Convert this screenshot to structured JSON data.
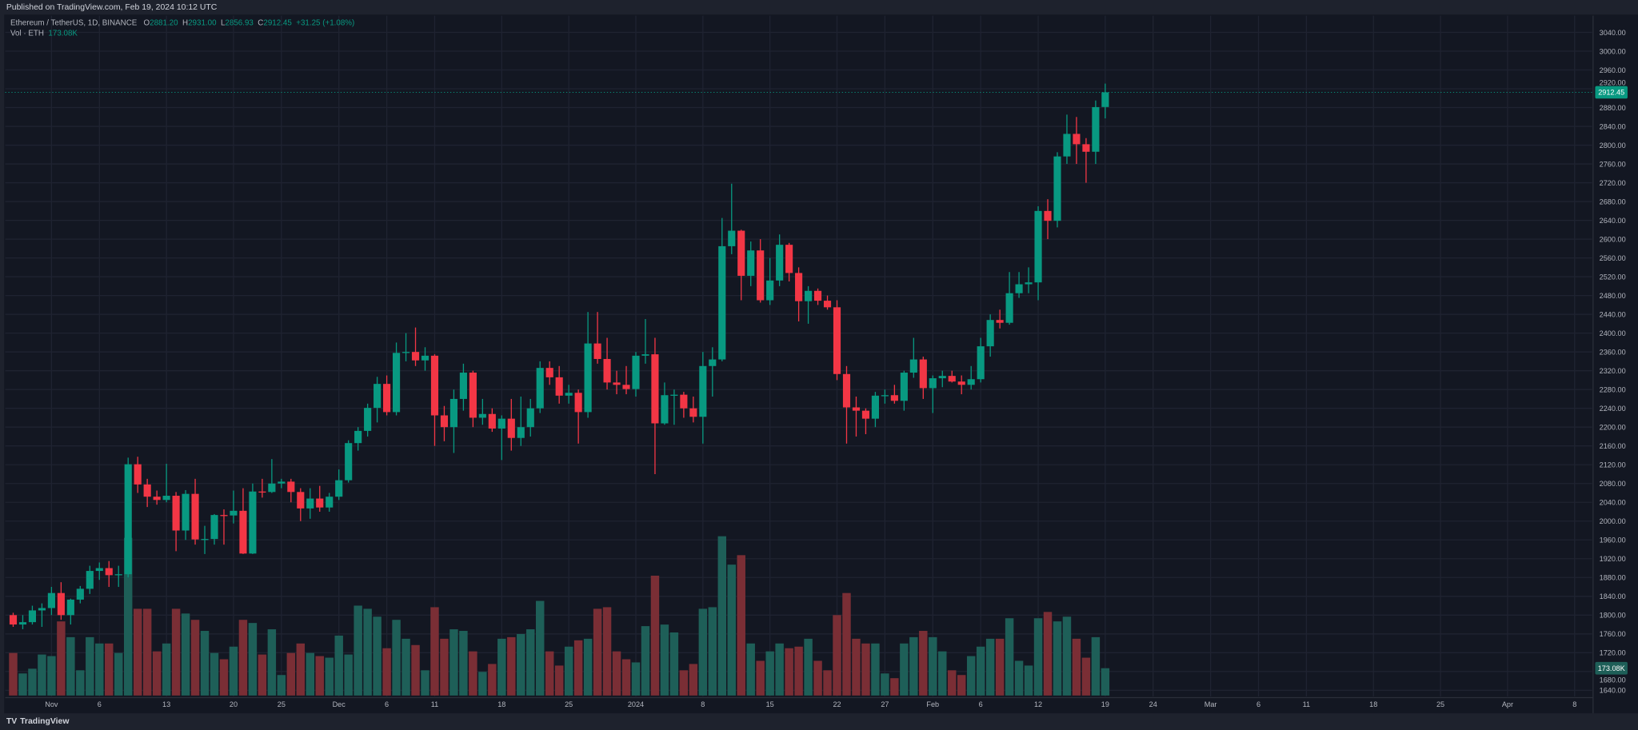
{
  "header": {
    "published": "Published on TradingView.com, Feb 19, 2024 10:12 UTC"
  },
  "legend": {
    "symbol": "Ethereum / TetherUS, 1D, BINANCE",
    "open_label": "O",
    "open": "2881.20",
    "high_label": "H",
    "high": "2931.00",
    "low_label": "L",
    "low": "2856.93",
    "close_label": "C",
    "close": "2912.45",
    "change": "+31.25 (+1.08%)",
    "volume_label": "Vol · ETH",
    "volume": "173.08K"
  },
  "footer": {
    "brand": "TradingView",
    "logo_text": "TV"
  },
  "colors": {
    "up": "#089981",
    "down": "#f23645",
    "vol_up": "#1e5f58",
    "vol_down": "#7a2e35",
    "background": "#131722",
    "grid": "#1f2331",
    "text": "#b2b5be"
  },
  "chart_data": {
    "type": "candlestick",
    "title": "Ethereum / TetherUS, 1D, BINANCE",
    "ylim": [
      1620,
      3060
    ],
    "grid": true,
    "last_price_label": "2912.45",
    "last_volume_label": "173.08K",
    "y_ticks": [
      "3040.00",
      "3000.00",
      "2960.00",
      "2920.00",
      "2880.00",
      "2840.00",
      "2800.00",
      "2760.00",
      "2720.00",
      "2680.00",
      "2640.00",
      "2600.00",
      "2560.00",
      "2520.00",
      "2480.00",
      "2440.00",
      "2400.00",
      "2360.00",
      "2320.00",
      "2280.00",
      "2240.00",
      "2200.00",
      "2160.00",
      "2120.00",
      "2080.00",
      "2040.00",
      "2000.00",
      "1960.00",
      "1920.00",
      "1880.00",
      "1840.00",
      "1800.00",
      "1760.00",
      "1720.00",
      "1680.00",
      "1640.00"
    ],
    "x_ticks": [
      {
        "label": "Nov",
        "date": "2023-11-01"
      },
      {
        "label": "6",
        "date": "2023-11-06"
      },
      {
        "label": "13",
        "date": "2023-11-13"
      },
      {
        "label": "20",
        "date": "2023-11-20"
      },
      {
        "label": "25",
        "date": "2023-11-25"
      },
      {
        "label": "Dec",
        "date": "2023-12-01"
      },
      {
        "label": "6",
        "date": "2023-12-06"
      },
      {
        "label": "11",
        "date": "2023-12-11"
      },
      {
        "label": "18",
        "date": "2023-12-18"
      },
      {
        "label": "25",
        "date": "2023-12-25"
      },
      {
        "label": "2024",
        "date": "2024-01-01"
      },
      {
        "label": "8",
        "date": "2024-01-08"
      },
      {
        "label": "15",
        "date": "2024-01-15"
      },
      {
        "label": "22",
        "date": "2024-01-22"
      },
      {
        "label": "27",
        "date": "2024-01-27"
      },
      {
        "label": "Feb",
        "date": "2024-02-01"
      },
      {
        "label": "6",
        "date": "2024-02-06"
      },
      {
        "label": "12",
        "date": "2024-02-12"
      },
      {
        "label": "19",
        "date": "2024-02-19"
      },
      {
        "label": "24",
        "date": "2024-02-24"
      },
      {
        "label": "Mar",
        "date": "2024-03-01"
      },
      {
        "label": "6",
        "date": "2024-03-06"
      },
      {
        "label": "11",
        "date": "2024-03-11"
      },
      {
        "label": "18",
        "date": "2024-03-18"
      },
      {
        "label": "25",
        "date": "2024-03-25"
      },
      {
        "label": "Apr",
        "date": "2024-04-01"
      },
      {
        "label": "8",
        "date": "2024-04-08"
      }
    ],
    "columns": [
      "date",
      "open",
      "high",
      "low",
      "close",
      "volume_k"
    ],
    "ohlcv": [
      [
        "2023-10-28",
        1800,
        1805,
        1775,
        1780,
        270
      ],
      [
        "2023-10-29",
        1780,
        1800,
        1770,
        1785,
        140
      ],
      [
        "2023-10-30",
        1785,
        1820,
        1780,
        1810,
        170
      ],
      [
        "2023-10-31",
        1810,
        1825,
        1775,
        1815,
        260
      ],
      [
        "2023-11-01",
        1815,
        1860,
        1800,
        1847,
        250
      ],
      [
        "2023-11-02",
        1847,
        1870,
        1790,
        1800,
        470
      ],
      [
        "2023-11-03",
        1800,
        1835,
        1780,
        1833,
        370
      ],
      [
        "2023-11-04",
        1833,
        1862,
        1825,
        1856,
        160
      ],
      [
        "2023-11-05",
        1856,
        1905,
        1845,
        1894,
        370
      ],
      [
        "2023-11-06",
        1894,
        1912,
        1875,
        1900,
        330
      ],
      [
        "2023-11-07",
        1900,
        1915,
        1860,
        1885,
        330
      ],
      [
        "2023-11-08",
        1885,
        1905,
        1860,
        1887,
        270
      ],
      [
        "2023-11-09",
        1887,
        2135,
        1880,
        2121,
        1000
      ],
      [
        "2023-11-10",
        2121,
        2137,
        2060,
        2078,
        550
      ],
      [
        "2023-11-11",
        2078,
        2090,
        2030,
        2052,
        550
      ],
      [
        "2023-11-12",
        2052,
        2065,
        2035,
        2045,
        280
      ],
      [
        "2023-11-13",
        2045,
        2122,
        2040,
        2054,
        330
      ],
      [
        "2023-11-14",
        2054,
        2062,
        1936,
        1980,
        550
      ],
      [
        "2023-11-15",
        1980,
        2066,
        1960,
        2058,
        520
      ],
      [
        "2023-11-16",
        2058,
        2090,
        1950,
        1961,
        480
      ],
      [
        "2023-11-17",
        1961,
        1990,
        1930,
        1962,
        410
      ],
      [
        "2023-11-18",
        1962,
        2015,
        1950,
        2013,
        270
      ],
      [
        "2023-11-19",
        2013,
        2025,
        1950,
        2012,
        230
      ],
      [
        "2023-11-20",
        2012,
        2065,
        1995,
        2022,
        310
      ],
      [
        "2023-11-21",
        2022,
        2070,
        1930,
        1931,
        480
      ],
      [
        "2023-11-22",
        1931,
        2080,
        1930,
        2063,
        460
      ],
      [
        "2023-11-23",
        2063,
        2090,
        2050,
        2062,
        260
      ],
      [
        "2023-11-24",
        2062,
        2132,
        2060,
        2080,
        420
      ],
      [
        "2023-11-25",
        2080,
        2090,
        2070,
        2084,
        130
      ],
      [
        "2023-11-26",
        2084,
        2090,
        2040,
        2062,
        270
      ],
      [
        "2023-11-27",
        2062,
        2070,
        2000,
        2027,
        330
      ],
      [
        "2023-11-28",
        2027,
        2070,
        2005,
        2048,
        270
      ],
      [
        "2023-11-29",
        2048,
        2075,
        2020,
        2029,
        250
      ],
      [
        "2023-11-30",
        2029,
        2060,
        2020,
        2052,
        240
      ],
      [
        "2023-12-01",
        2052,
        2110,
        2045,
        2087,
        380
      ],
      [
        "2023-12-02",
        2087,
        2172,
        2082,
        2166,
        260
      ],
      [
        "2023-12-03",
        2166,
        2200,
        2150,
        2192,
        570
      ],
      [
        "2023-12-04",
        2192,
        2250,
        2180,
        2241,
        550
      ],
      [
        "2023-12-05",
        2241,
        2307,
        2210,
        2292,
        500
      ],
      [
        "2023-12-06",
        2292,
        2310,
        2225,
        2232,
        300
      ],
      [
        "2023-12-07",
        2232,
        2380,
        2225,
        2358,
        480
      ],
      [
        "2023-12-08",
        2358,
        2400,
        2340,
        2360,
        360
      ],
      [
        "2023-12-09",
        2360,
        2412,
        2330,
        2342,
        320
      ],
      [
        "2023-12-10",
        2342,
        2370,
        2320,
        2352,
        160
      ],
      [
        "2023-12-11",
        2352,
        2355,
        2160,
        2225,
        560
      ],
      [
        "2023-12-12",
        2225,
        2245,
        2170,
        2200,
        360
      ],
      [
        "2023-12-13",
        2200,
        2280,
        2145,
        2260,
        420
      ],
      [
        "2023-12-14",
        2260,
        2335,
        2235,
        2316,
        410
      ],
      [
        "2023-12-15",
        2316,
        2320,
        2200,
        2220,
        280
      ],
      [
        "2023-12-16",
        2220,
        2260,
        2205,
        2228,
        150
      ],
      [
        "2023-12-17",
        2228,
        2240,
        2190,
        2197,
        200
      ],
      [
        "2023-12-18",
        2197,
        2225,
        2130,
        2218,
        360
      ],
      [
        "2023-12-19",
        2218,
        2260,
        2150,
        2177,
        370
      ],
      [
        "2023-12-20",
        2177,
        2265,
        2160,
        2200,
        390
      ],
      [
        "2023-12-21",
        2200,
        2260,
        2180,
        2240,
        420
      ],
      [
        "2023-12-22",
        2240,
        2340,
        2230,
        2326,
        600
      ],
      [
        "2023-12-23",
        2326,
        2340,
        2290,
        2306,
        280
      ],
      [
        "2023-12-24",
        2306,
        2330,
        2250,
        2267,
        190
      ],
      [
        "2023-12-25",
        2267,
        2290,
        2250,
        2273,
        310
      ],
      [
        "2023-12-26",
        2273,
        2280,
        2165,
        2232,
        350
      ],
      [
        "2023-12-27",
        2232,
        2445,
        2220,
        2378,
        360
      ],
      [
        "2023-12-28",
        2378,
        2445,
        2335,
        2345,
        550
      ],
      [
        "2023-12-29",
        2345,
        2390,
        2280,
        2295,
        560
      ],
      [
        "2023-12-30",
        2295,
        2320,
        2270,
        2290,
        280
      ],
      [
        "2023-12-31",
        2290,
        2330,
        2270,
        2281,
        230
      ],
      [
        "2024-01-01",
        2281,
        2360,
        2265,
        2352,
        210
      ],
      [
        "2024-01-02",
        2352,
        2430,
        2335,
        2355,
        440
      ],
      [
        "2024-01-03",
        2355,
        2390,
        2100,
        2208,
        760
      ],
      [
        "2024-01-04",
        2208,
        2295,
        2205,
        2268,
        450
      ],
      [
        "2024-01-05",
        2268,
        2280,
        2205,
        2269,
        400
      ],
      [
        "2024-01-06",
        2269,
        2275,
        2220,
        2240,
        160
      ],
      [
        "2024-01-07",
        2240,
        2265,
        2210,
        2222,
        200
      ],
      [
        "2024-01-08",
        2222,
        2360,
        2165,
        2330,
        550
      ],
      [
        "2024-01-09",
        2330,
        2370,
        2265,
        2344,
        560
      ],
      [
        "2024-01-10",
        2344,
        2645,
        2340,
        2585,
        1010
      ],
      [
        "2024-01-11",
        2585,
        2718,
        2568,
        2618,
        830
      ],
      [
        "2024-01-12",
        2618,
        2620,
        2470,
        2522,
        890
      ],
      [
        "2024-01-13",
        2522,
        2595,
        2500,
        2576,
        330
      ],
      [
        "2024-01-14",
        2576,
        2600,
        2465,
        2470,
        220
      ],
      [
        "2024-01-15",
        2470,
        2560,
        2460,
        2512,
        280
      ],
      [
        "2024-01-16",
        2512,
        2610,
        2500,
        2588,
        330
      ],
      [
        "2024-01-17",
        2588,
        2592,
        2510,
        2528,
        300
      ],
      [
        "2024-01-18",
        2528,
        2540,
        2425,
        2468,
        310
      ],
      [
        "2024-01-19",
        2468,
        2500,
        2420,
        2490,
        360
      ],
      [
        "2024-01-20",
        2490,
        2495,
        2460,
        2469,
        220
      ],
      [
        "2024-01-21",
        2469,
        2480,
        2450,
        2455,
        160
      ],
      [
        "2024-01-22",
        2455,
        2470,
        2300,
        2313,
        510
      ],
      [
        "2024-01-23",
        2313,
        2330,
        2165,
        2242,
        650
      ],
      [
        "2024-01-24",
        2242,
        2265,
        2180,
        2235,
        360
      ],
      [
        "2024-01-25",
        2235,
        2240,
        2185,
        2218,
        330
      ],
      [
        "2024-01-26",
        2218,
        2275,
        2200,
        2267,
        330
      ],
      [
        "2024-01-27",
        2267,
        2280,
        2250,
        2268,
        140
      ],
      [
        "2024-01-28",
        2268,
        2290,
        2250,
        2256,
        110
      ],
      [
        "2024-01-29",
        2256,
        2320,
        2235,
        2316,
        330
      ],
      [
        "2024-01-30",
        2316,
        2390,
        2305,
        2344,
        370
      ],
      [
        "2024-01-31",
        2344,
        2350,
        2260,
        2283,
        410
      ],
      [
        "2024-02-01",
        2283,
        2310,
        2230,
        2304,
        370
      ],
      [
        "2024-02-02",
        2304,
        2320,
        2285,
        2309,
        280
      ],
      [
        "2024-02-03",
        2309,
        2320,
        2295,
        2297,
        160
      ],
      [
        "2024-02-04",
        2297,
        2310,
        2270,
        2290,
        130
      ],
      [
        "2024-02-05",
        2290,
        2330,
        2280,
        2302,
        250
      ],
      [
        "2024-02-06",
        2302,
        2390,
        2295,
        2372,
        310
      ],
      [
        "2024-02-07",
        2372,
        2440,
        2350,
        2428,
        360
      ],
      [
        "2024-02-08",
        2428,
        2450,
        2410,
        2422,
        360
      ],
      [
        "2024-02-09",
        2422,
        2530,
        2418,
        2485,
        490
      ],
      [
        "2024-02-10",
        2485,
        2530,
        2475,
        2504,
        220
      ],
      [
        "2024-02-11",
        2504,
        2540,
        2485,
        2508,
        190
      ],
      [
        "2024-02-12",
        2508,
        2670,
        2470,
        2660,
        490
      ],
      [
        "2024-02-13",
        2660,
        2685,
        2600,
        2639,
        530
      ],
      [
        "2024-02-14",
        2639,
        2785,
        2625,
        2776,
        470
      ],
      [
        "2024-02-15",
        2776,
        2865,
        2760,
        2824,
        500
      ],
      [
        "2024-02-16",
        2824,
        2860,
        2760,
        2802,
        360
      ],
      [
        "2024-02-17",
        2802,
        2815,
        2720,
        2786,
        240
      ],
      [
        "2024-02-18",
        2786,
        2895,
        2760,
        2881,
        370
      ],
      [
        "2024-02-19",
        2881.2,
        2931.0,
        2856.93,
        2912.45,
        173.08
      ]
    ]
  }
}
